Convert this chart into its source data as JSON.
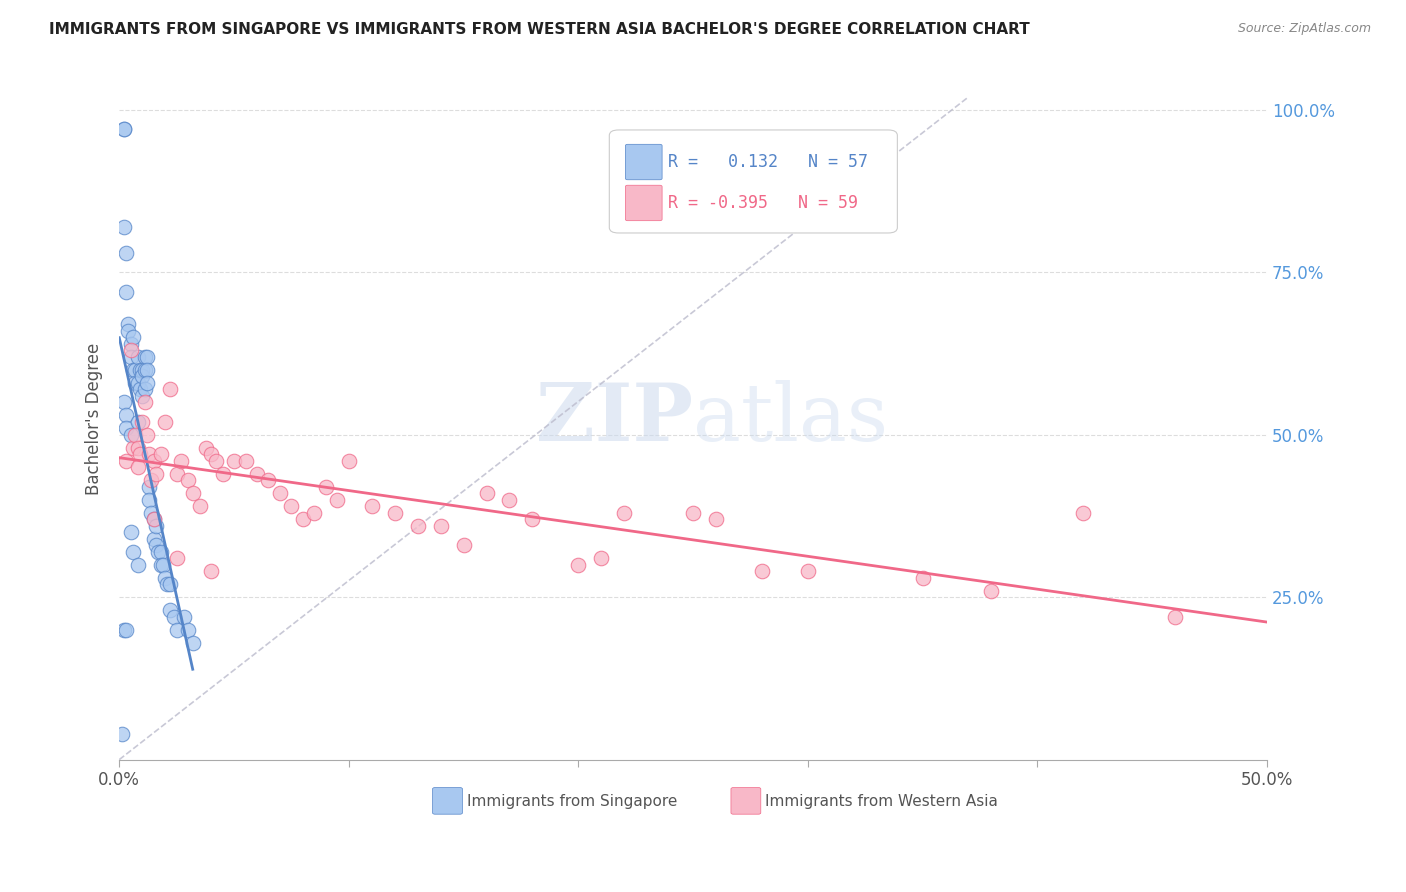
{
  "title": "IMMIGRANTS FROM SINGAPORE VS IMMIGRANTS FROM WESTERN ASIA BACHELOR'S DEGREE CORRELATION CHART",
  "source": "Source: ZipAtlas.com",
  "ylabel": "Bachelor's Degree",
  "right_ytick_labels": [
    "100.0%",
    "75.0%",
    "50.0%",
    "25.0%"
  ],
  "right_ytick_positions": [
    1.0,
    0.75,
    0.5,
    0.25
  ],
  "xlim": [
    0.0,
    0.5
  ],
  "ylim": [
    0.0,
    1.05
  ],
  "legend_R1": " 0.132",
  "legend_N1": "57",
  "legend_R2": "-0.395",
  "legend_N2": "59",
  "color_singapore": "#A8C8F0",
  "color_western_asia": "#F8B8C8",
  "color_singapore_line": "#5585C8",
  "color_western_asia_line": "#F06888",
  "color_diagonal": "#BBBBCC",
  "watermark_zip": "ZIP",
  "watermark_atlas": "atlas",
  "sg_x": [
    0.001,
    0.002,
    0.002,
    0.002,
    0.002,
    0.003,
    0.003,
    0.003,
    0.004,
    0.004,
    0.005,
    0.005,
    0.005,
    0.006,
    0.006,
    0.006,
    0.007,
    0.007,
    0.008,
    0.008,
    0.008,
    0.009,
    0.009,
    0.01,
    0.01,
    0.01,
    0.011,
    0.011,
    0.011,
    0.012,
    0.012,
    0.012,
    0.013,
    0.013,
    0.014,
    0.015,
    0.015,
    0.016,
    0.016,
    0.017,
    0.018,
    0.018,
    0.019,
    0.02,
    0.021,
    0.022,
    0.022,
    0.024,
    0.025,
    0.028,
    0.03,
    0.032,
    0.002,
    0.003,
    0.003,
    0.005,
    0.008
  ],
  "sg_y": [
    0.04,
    0.97,
    0.97,
    0.82,
    0.2,
    0.78,
    0.72,
    0.2,
    0.67,
    0.66,
    0.64,
    0.62,
    0.35,
    0.65,
    0.6,
    0.32,
    0.6,
    0.58,
    0.62,
    0.58,
    0.3,
    0.6,
    0.57,
    0.6,
    0.59,
    0.56,
    0.62,
    0.6,
    0.57,
    0.62,
    0.6,
    0.58,
    0.42,
    0.4,
    0.38,
    0.37,
    0.34,
    0.36,
    0.33,
    0.32,
    0.32,
    0.3,
    0.3,
    0.28,
    0.27,
    0.27,
    0.23,
    0.22,
    0.2,
    0.22,
    0.2,
    0.18,
    0.55,
    0.53,
    0.51,
    0.5,
    0.52
  ],
  "wa_x": [
    0.003,
    0.005,
    0.006,
    0.007,
    0.008,
    0.009,
    0.01,
    0.011,
    0.012,
    0.013,
    0.014,
    0.015,
    0.016,
    0.018,
    0.02,
    0.022,
    0.025,
    0.027,
    0.03,
    0.032,
    0.035,
    0.038,
    0.04,
    0.042,
    0.045,
    0.05,
    0.055,
    0.06,
    0.065,
    0.07,
    0.075,
    0.08,
    0.085,
    0.09,
    0.095,
    0.1,
    0.11,
    0.12,
    0.13,
    0.14,
    0.15,
    0.16,
    0.17,
    0.18,
    0.2,
    0.21,
    0.22,
    0.25,
    0.26,
    0.28,
    0.3,
    0.35,
    0.38,
    0.42,
    0.46,
    0.008,
    0.015,
    0.025,
    0.04
  ],
  "wa_y": [
    0.46,
    0.63,
    0.48,
    0.5,
    0.48,
    0.47,
    0.52,
    0.55,
    0.5,
    0.47,
    0.43,
    0.46,
    0.44,
    0.47,
    0.52,
    0.57,
    0.44,
    0.46,
    0.43,
    0.41,
    0.39,
    0.48,
    0.47,
    0.46,
    0.44,
    0.46,
    0.46,
    0.44,
    0.43,
    0.41,
    0.39,
    0.37,
    0.38,
    0.42,
    0.4,
    0.46,
    0.39,
    0.38,
    0.36,
    0.36,
    0.33,
    0.41,
    0.4,
    0.37,
    0.3,
    0.31,
    0.38,
    0.38,
    0.37,
    0.29,
    0.29,
    0.28,
    0.26,
    0.38,
    0.22,
    0.45,
    0.37,
    0.31,
    0.29
  ]
}
